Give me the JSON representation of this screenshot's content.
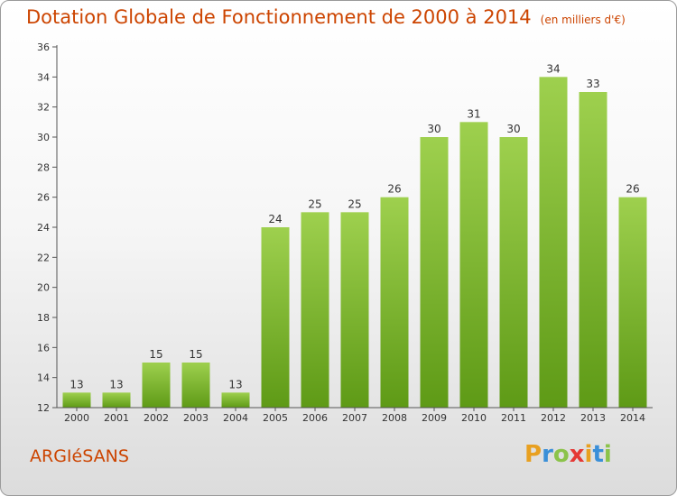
{
  "title": "Dotation Globale de Fonctionnement de 2000 à 2014",
  "unit": "(en milliers d'€)",
  "commune": "ARGIéSANS",
  "logo": [
    "P",
    "r",
    "o",
    "x",
    "i",
    "t",
    "i"
  ],
  "logo_colors": [
    "#e8a020",
    "#3a8fd8",
    "#8bc34a",
    "#e53935",
    "#e8a020",
    "#3a8fd8",
    "#8bc34a"
  ],
  "colors": {
    "accent": "#cc4400",
    "bar_top": "#9ed04e",
    "bar_bottom": "#5e9a16"
  },
  "chart_data": {
    "type": "bar",
    "categories": [
      "2000",
      "2001",
      "2002",
      "2003",
      "2004",
      "2005",
      "2006",
      "2007",
      "2008",
      "2009",
      "2010",
      "2011",
      "2012",
      "2013",
      "2014"
    ],
    "values": [
      13,
      13,
      15,
      15,
      13,
      24,
      25,
      25,
      26,
      30,
      31,
      30,
      34,
      33,
      26
    ],
    "ylim": [
      12,
      36
    ],
    "yticks": [
      12,
      14,
      16,
      18,
      20,
      22,
      24,
      26,
      28,
      30,
      32,
      34,
      36
    ],
    "grid": false,
    "data_labels": true
  }
}
